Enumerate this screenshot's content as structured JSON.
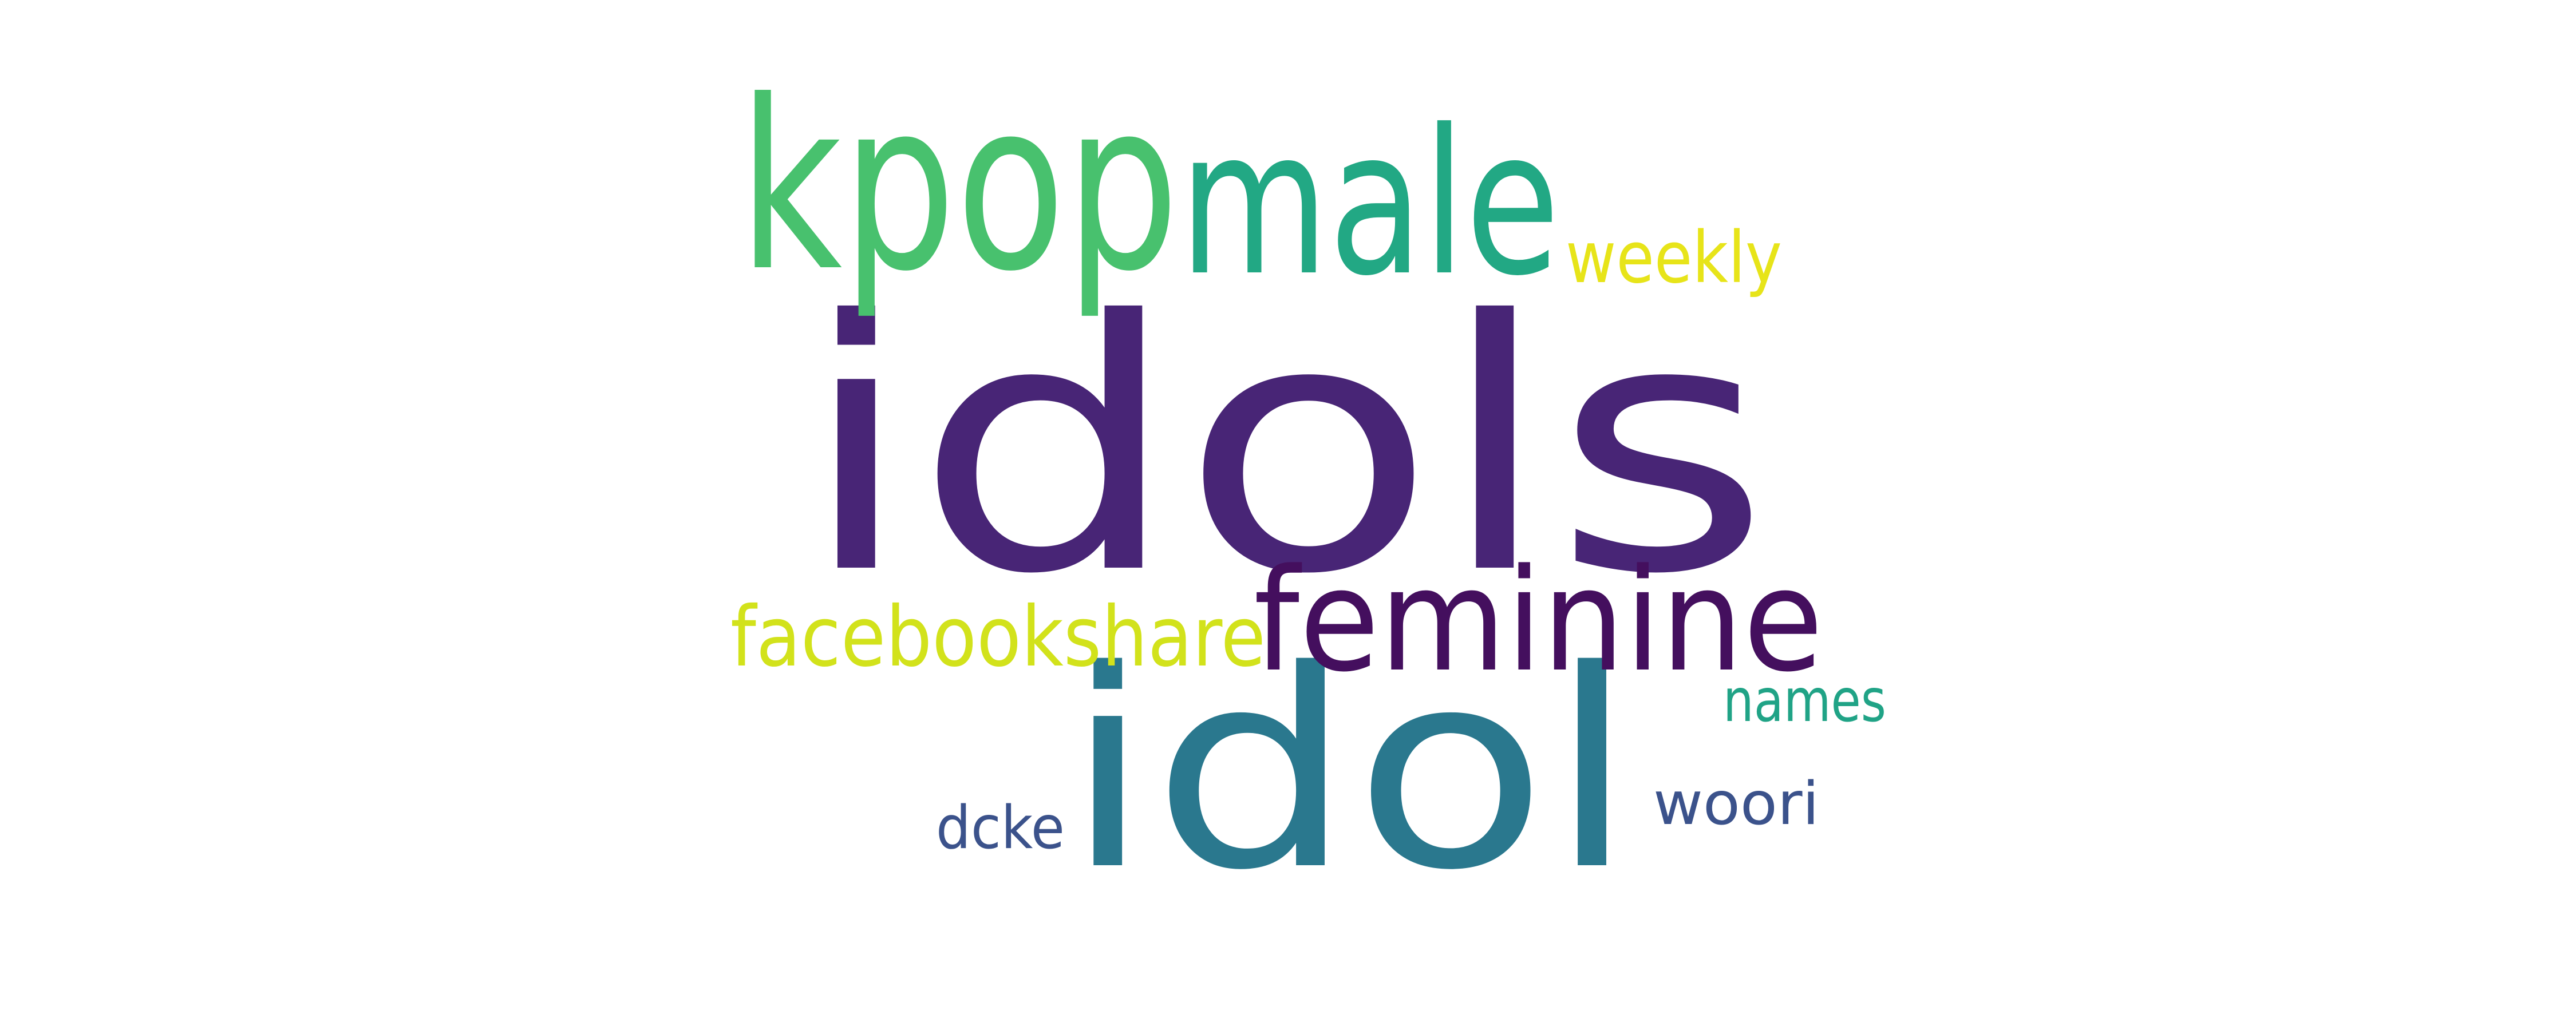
{
  "words": [
    {
      "text": "idols",
      "color": "#482576"
    },
    {
      "text": "idol",
      "color": "#2a788e"
    },
    {
      "text": "kpop",
      "color": "#48c16e"
    },
    {
      "text": "male",
      "color": "#22a884"
    },
    {
      "text": "feminine",
      "color": "#440f5e"
    },
    {
      "text": "facebookshare",
      "color": "#d2e21b"
    },
    {
      "text": "weekly",
      "color": "#e7e419"
    },
    {
      "text": "names",
      "color": "#20a386"
    },
    {
      "text": "woori",
      "color": "#3b528b"
    },
    {
      "text": "dcke",
      "color": "#3b528b"
    }
  ]
}
